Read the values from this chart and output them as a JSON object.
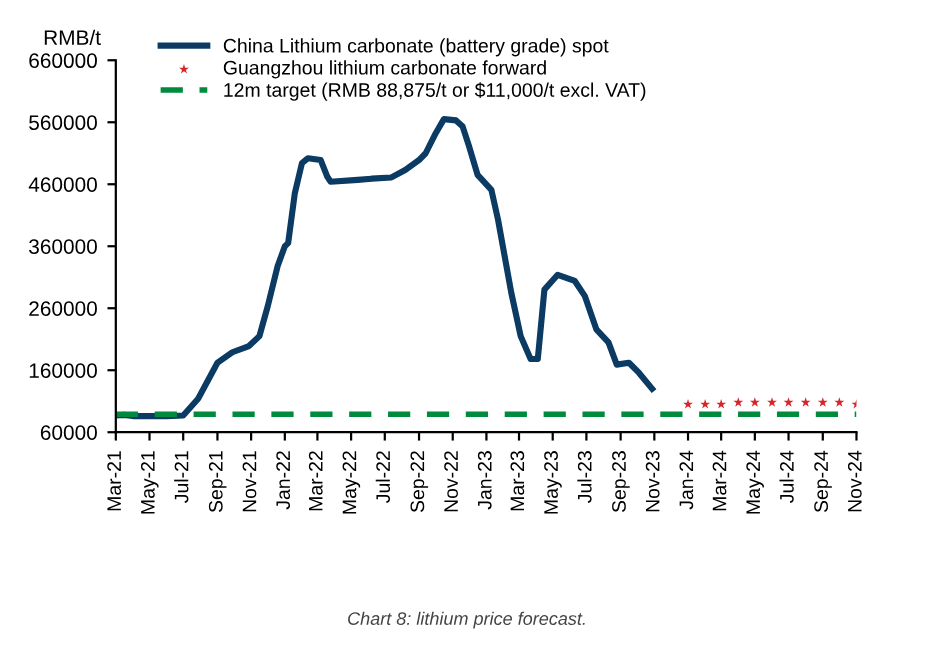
{
  "chart_data": {
    "type": "line",
    "ylabel": "RMB/t",
    "series": [
      {
        "name": "China Lithium carbonate (battery grade) spot",
        "color": "#0b3a63",
        "line_style": "solid",
        "marker": "none",
        "x": [
          "2021-03-01",
          "2021-03-16",
          "2021-04-01",
          "2021-06-01",
          "2021-07-01",
          "2021-07-28",
          "2021-09-01",
          "2021-09-28",
          "2021-10-28",
          "2021-11-16",
          "2021-12-01",
          "2021-12-19",
          "2022-01-01",
          "2022-01-07",
          "2022-01-19",
          "2022-02-01",
          "2022-02-12",
          "2022-03-07",
          "2022-03-19",
          "2022-03-25",
          "2022-05-13",
          "2022-06-07",
          "2022-07-13",
          "2022-08-07",
          "2022-09-01",
          "2022-09-13",
          "2022-10-01",
          "2022-10-16",
          "2022-11-07",
          "2022-11-19",
          "2022-12-01",
          "2022-12-16",
          "2023-01-10",
          "2023-01-22",
          "2023-02-15",
          "2023-03-04",
          "2023-03-22",
          "2023-04-04",
          "2023-04-16",
          "2023-05-10",
          "2023-06-10",
          "2023-06-28",
          "2023-07-19",
          "2023-08-10",
          "2023-08-25",
          "2023-09-16",
          "2023-10-04",
          "2023-10-28"
        ],
        "values": [
          87000,
          88000,
          86000,
          86000,
          87000,
          114000,
          172000,
          189000,
          199000,
          215000,
          263000,
          328000,
          360000,
          365000,
          445000,
          494000,
          502000,
          499000,
          472000,
          464000,
          467000,
          469000,
          471000,
          483000,
          499000,
          510000,
          542000,
          565000,
          563000,
          553000,
          520000,
          475000,
          451000,
          403000,
          285000,
          215000,
          178000,
          178000,
          290000,
          314000,
          304000,
          280000,
          226000,
          205000,
          169000,
          172000,
          156000,
          130000
        ]
      },
      {
        "name": "Guangzhou lithium carbonate forward",
        "color": "#d6252b",
        "type": "scatter",
        "marker": "star",
        "x": [
          "2024-01-01",
          "2024-02-01",
          "2024-03-01",
          "2024-04-01",
          "2024-05-01",
          "2024-06-01",
          "2024-07-01",
          "2024-08-01",
          "2024-09-01",
          "2024-10-01",
          "2024-11-01"
        ],
        "values": [
          105000,
          105000,
          105000,
          108000,
          108000,
          108000,
          108000,
          108000,
          108000,
          108000,
          105000
        ]
      },
      {
        "name": "12m target (RMB 88,875/t or $11,000/t excl. VAT)",
        "color": "#008a3e",
        "line_style": "dashed",
        "marker": "none",
        "x": [
          "2021-03-01",
          "2024-11-01"
        ],
        "values": [
          88875,
          88875
        ]
      }
    ],
    "xlim": [
      "2021-03-01",
      "2024-11-01"
    ],
    "xticks": [
      {
        "value": "2021-03-01",
        "label": "Mar-21"
      },
      {
        "value": "2021-05-01",
        "label": "May-21"
      },
      {
        "value": "2021-07-01",
        "label": "Jul-21"
      },
      {
        "value": "2021-09-01",
        "label": "Sep-21"
      },
      {
        "value": "2021-11-01",
        "label": "Nov-21"
      },
      {
        "value": "2022-01-01",
        "label": "Jan-22"
      },
      {
        "value": "2022-03-01",
        "label": "Mar-22"
      },
      {
        "value": "2022-05-01",
        "label": "May-22"
      },
      {
        "value": "2022-07-01",
        "label": "Jul-22"
      },
      {
        "value": "2022-09-01",
        "label": "Sep-22"
      },
      {
        "value": "2022-11-01",
        "label": "Nov-22"
      },
      {
        "value": "2023-01-01",
        "label": "Jan-23"
      },
      {
        "value": "2023-03-01",
        "label": "Mar-23"
      },
      {
        "value": "2023-05-01",
        "label": "May-23"
      },
      {
        "value": "2023-07-01",
        "label": "Jul-23"
      },
      {
        "value": "2023-09-01",
        "label": "Sep-23"
      },
      {
        "value": "2023-11-01",
        "label": "Nov-23"
      },
      {
        "value": "2024-01-01",
        "label": "Jan-24"
      },
      {
        "value": "2024-03-01",
        "label": "Mar-24"
      },
      {
        "value": "2024-05-01",
        "label": "May-24"
      },
      {
        "value": "2024-07-01",
        "label": "Jul-24"
      },
      {
        "value": "2024-09-01",
        "label": "Sep-24"
      },
      {
        "value": "2024-11-01",
        "label": "Nov-24"
      }
    ],
    "ylim": [
      60000,
      660000
    ],
    "yticks": [
      60000,
      160000,
      260000,
      360000,
      460000,
      560000,
      660000
    ],
    "grid": false,
    "legend": "top left",
    "annotations": [
      "Chart 8: lithium price forecast."
    ]
  }
}
